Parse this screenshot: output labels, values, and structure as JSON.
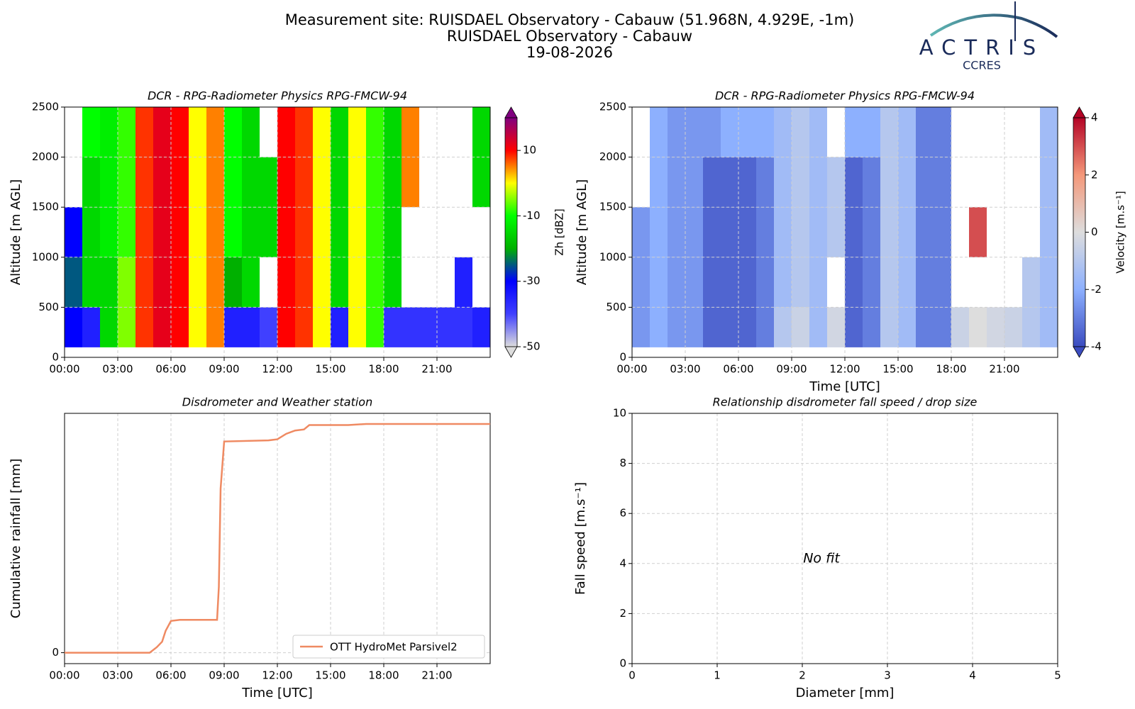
{
  "title": [
    "Measurement site: RUISDAEL Observatory - Cabauw (51.968N, 4.929E, -1m)",
    "RUISDAEL Observatory - Cabauw",
    "19-08-2026"
  ],
  "logo": {
    "name": "ACTRIS",
    "subtitle": "CCRES"
  },
  "chart_data": [
    {
      "type": "heatmap",
      "title": "DCR - RPG-Radiometer Physics RPG-FMCW-94",
      "y_label": "Altitude [m AGL]",
      "x_bins": [
        0,
        1,
        2,
        3,
        4,
        5,
        6,
        7,
        8,
        9,
        10,
        11,
        12,
        13,
        14,
        15,
        16,
        17,
        18,
        19,
        20,
        21,
        22,
        23,
        24
      ],
      "y_bins": [
        100,
        500,
        1000,
        1500,
        2000,
        2500
      ],
      "values": [
        [
          -30,
          -25,
          -30,
          null,
          null
        ],
        [
          -35,
          -15,
          -15,
          -15,
          -10
        ],
        [
          -15,
          -15,
          -12,
          -12,
          -12
        ],
        [
          -5,
          -5,
          -8,
          -8,
          -8
        ],
        [
          8,
          8,
          8,
          8,
          8
        ],
        [
          12,
          12,
          12,
          12,
          12
        ],
        [
          10,
          10,
          10,
          10,
          10
        ],
        [
          0,
          0,
          0,
          0,
          0
        ],
        [
          5,
          5,
          5,
          5,
          5
        ],
        [
          -35,
          -20,
          -10,
          -10,
          -10
        ],
        [
          -35,
          -15,
          -15,
          -15,
          -15
        ],
        [
          -40,
          null,
          -15,
          -15,
          null
        ],
        [
          10,
          10,
          10,
          10,
          10
        ],
        [
          8,
          8,
          8,
          8,
          8
        ],
        [
          0,
          0,
          0,
          0,
          0
        ],
        [
          -35,
          -15,
          -15,
          -15,
          -15
        ],
        [
          0,
          0,
          0,
          0,
          0
        ],
        [
          -8,
          -8,
          -8,
          -8,
          -8
        ],
        [
          -38,
          -15,
          -15,
          -15,
          -15
        ],
        [
          -38,
          null,
          null,
          5,
          5
        ],
        [
          -38,
          null,
          null,
          null,
          null
        ],
        [
          -38,
          null,
          null,
          null,
          null
        ],
        [
          -38,
          -35,
          null,
          null,
          null
        ],
        [
          -35,
          null,
          null,
          -15,
          -15
        ]
      ],
      "xlim": [
        0,
        24
      ],
      "xticks": [
        {
          "value": 0,
          "label": "00:00"
        },
        {
          "value": 3,
          "label": "03:00"
        },
        {
          "value": 6,
          "label": "06:00"
        },
        {
          "value": 9,
          "label": "09:00"
        },
        {
          "value": 12,
          "label": "12:00"
        },
        {
          "value": 15,
          "label": "15:00"
        },
        {
          "value": 18,
          "label": "18:00"
        },
        {
          "value": 21,
          "label": "21:00"
        }
      ],
      "ylim": [
        0,
        2500
      ],
      "yticks": [
        0,
        500,
        1000,
        1500,
        2000,
        2500
      ],
      "grid": true,
      "colorbar_label": "Zh [dBZ]",
      "clim": [
        -50,
        20
      ],
      "cticks": [
        10,
        -10,
        -30,
        -50
      ],
      "colormap": [
        "#dcdcdc",
        "#4040ff",
        "#0000ff",
        "#00b000",
        "#00ff00",
        "#ffff00",
        "#ff0000",
        "#800080"
      ]
    },
    {
      "type": "heatmap",
      "title": "DCR - RPG-Radiometer Physics RPG-FMCW-94",
      "x_label": "Time [UTC]",
      "y_label": "Altitude [m AGL]",
      "x_bins": [
        0,
        1,
        2,
        3,
        4,
        5,
        6,
        7,
        8,
        9,
        10,
        11,
        12,
        13,
        14,
        15,
        16,
        17,
        18,
        19,
        20,
        21,
        22,
        23,
        24
      ],
      "y_bins": [
        100,
        500,
        1000,
        1500,
        2000,
        2500
      ],
      "values": [
        [
          -2.5,
          -2.5,
          -2.5,
          null,
          null
        ],
        [
          -2,
          -2,
          -2,
          -2,
          -2
        ],
        [
          -2.5,
          -2.5,
          -2.5,
          -2.5,
          -2.5
        ],
        [
          -2.5,
          -2.5,
          -2.5,
          -2.5,
          -2.5
        ],
        [
          -3.5,
          -3.5,
          -3.5,
          -3.5,
          -2.5
        ],
        [
          -3.5,
          -3.5,
          -3.5,
          -3.5,
          -2
        ],
        [
          -3.5,
          -3.5,
          -3.5,
          -3.5,
          -2
        ],
        [
          -3,
          -3,
          -3,
          -3,
          -2
        ],
        [
          -1,
          -1.5,
          -1.5,
          -1.5,
          -1.5
        ],
        [
          -0.5,
          -1,
          -1,
          -1,
          -1
        ],
        [
          -1.5,
          -1.5,
          -1.5,
          -1.5,
          -1.5
        ],
        [
          -0.3,
          null,
          -1,
          -1,
          null
        ],
        [
          -3.5,
          -3.5,
          -3.5,
          -3.5,
          -2
        ],
        [
          -3,
          -3,
          -3,
          -3,
          -2
        ],
        [
          -1,
          -1,
          -1,
          -1,
          -1
        ],
        [
          -1.5,
          -1.5,
          -1.5,
          -1.5,
          -1.5
        ],
        [
          -3,
          -3,
          -3,
          -3,
          -3
        ],
        [
          -3,
          -3,
          -3,
          -3,
          -3
        ],
        [
          -0.5,
          null,
          null,
          null,
          null
        ],
        [
          0,
          null,
          3,
          null,
          null
        ],
        [
          -0.3,
          null,
          null,
          null,
          null
        ],
        [
          -0.5,
          null,
          null,
          null,
          null
        ],
        [
          -1,
          -1,
          null,
          null,
          null
        ],
        [
          -1.5,
          -1.5,
          -1.5,
          -1.5,
          -1.5
        ]
      ],
      "xlim": [
        0,
        24
      ],
      "xticks": [
        {
          "value": 0,
          "label": "00:00"
        },
        {
          "value": 3,
          "label": "03:00"
        },
        {
          "value": 6,
          "label": "06:00"
        },
        {
          "value": 9,
          "label": "09:00"
        },
        {
          "value": 12,
          "label": "12:00"
        },
        {
          "value": 15,
          "label": "15:00"
        },
        {
          "value": 18,
          "label": "18:00"
        },
        {
          "value": 21,
          "label": "21:00"
        }
      ],
      "ylim": [
        0,
        2500
      ],
      "yticks": [
        0,
        500,
        1000,
        1500,
        2000,
        2500
      ],
      "grid": true,
      "colorbar_label": "Velocity [m.s⁻¹]",
      "clim": [
        -4,
        4
      ],
      "cticks": [
        4,
        2,
        0,
        -2,
        -4
      ],
      "colormap": [
        "#3b4cc0",
        "#8db0fe",
        "#dddddd",
        "#f4987a",
        "#b40426"
      ]
    },
    {
      "type": "line",
      "title": "Disdrometer and Weather station",
      "x_label": "Time [UTC]",
      "y_label": "Cumulative rainfall [mm]",
      "x": [
        0,
        4.8,
        5.2,
        5.5,
        5.7,
        6,
        6.5,
        8.6,
        8.7,
        8.8,
        9,
        11.5,
        12,
        12.5,
        13,
        13.5,
        13.8,
        16,
        17,
        24
      ],
      "series": [
        {
          "name": "OTT HydroMet Parsivel2",
          "color": "#ef8a62",
          "values": [
            0,
            0,
            0.5,
            1,
            2,
            2.9,
            3,
            3,
            6,
            15,
            19.3,
            19.4,
            19.5,
            20,
            20.3,
            20.4,
            20.8,
            20.8,
            20.9,
            20.9
          ]
        }
      ],
      "xlim": [
        0,
        24
      ],
      "xticks": [
        {
          "value": 0,
          "label": "00:00"
        },
        {
          "value": 3,
          "label": "03:00"
        },
        {
          "value": 6,
          "label": "06:00"
        },
        {
          "value": 9,
          "label": "09:00"
        },
        {
          "value": 12,
          "label": "12:00"
        },
        {
          "value": 15,
          "label": "15:00"
        },
        {
          "value": 18,
          "label": "18:00"
        },
        {
          "value": 21,
          "label": "21:00"
        }
      ],
      "ylim": [
        -1,
        21.87
      ],
      "yticks": [
        0
      ],
      "grid": true,
      "legend": "lower right"
    },
    {
      "type": "scatter",
      "title": "Relationship disdrometer fall speed / drop size",
      "x_label": "Diameter [mm]",
      "y_label": "Fall speed [m.s⁻¹]",
      "annotation": "No fit",
      "xlim": [
        0,
        5
      ],
      "xticks": [
        0,
        1,
        2,
        3,
        4,
        5
      ],
      "ylim": [
        0,
        10
      ],
      "yticks": [
        0,
        2,
        4,
        6,
        8,
        10
      ],
      "grid": true
    }
  ]
}
